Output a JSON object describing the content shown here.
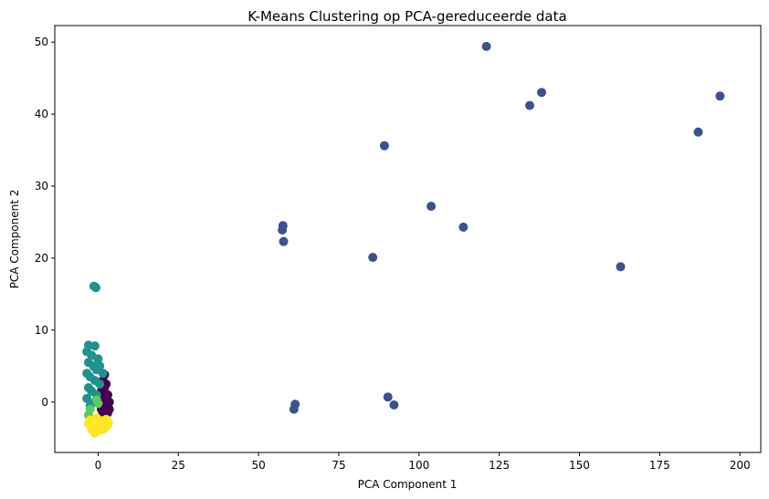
{
  "chart_data": {
    "type": "scatter",
    "title": "K-Means Clustering op PCA-gereduceerde data",
    "xlabel": "PCA Component 1",
    "ylabel": "PCA Component 2",
    "xlim": [
      -13.5,
      206.5
    ],
    "ylim": [
      -7,
      52.3
    ],
    "xticks": [
      0,
      25,
      50,
      75,
      100,
      125,
      150,
      175,
      200
    ],
    "yticks": [
      0,
      10,
      20,
      30,
      40,
      50
    ],
    "grid": false,
    "legend": "none",
    "series": [
      {
        "color": "#440154",
        "points": [
          [
            1.5,
            -1.5
          ],
          [
            2.0,
            0.5
          ],
          [
            2.5,
            -0.5
          ],
          [
            3.0,
            1.0
          ],
          [
            2.0,
            2.0
          ],
          [
            1.0,
            -1.0
          ],
          [
            3.5,
            -1.0
          ],
          [
            2.5,
            2.5
          ],
          [
            1.5,
            3.0
          ],
          [
            3.0,
            -1.5
          ],
          [
            2.0,
            3.8
          ],
          [
            1.0,
            1.5
          ],
          [
            3.5,
            0.0
          ]
        ]
      },
      {
        "color": "#3b528b",
        "points": [
          [
            121,
            49.4
          ],
          [
            134.5,
            41.2
          ],
          [
            138.2,
            43
          ],
          [
            193.8,
            42.5
          ],
          [
            187,
            37.5
          ],
          [
            89.2,
            35.6
          ],
          [
            103.8,
            27.2
          ],
          [
            113.8,
            24.3
          ],
          [
            57.6,
            24.5
          ],
          [
            57.4,
            23.9
          ],
          [
            57.8,
            22.3
          ],
          [
            85.6,
            20.1
          ],
          [
            162.8,
            18.8
          ],
          [
            90.3,
            0.7
          ],
          [
            92.2,
            -0.4
          ],
          [
            61.4,
            -0.3
          ],
          [
            61.0,
            -1.0
          ]
        ]
      },
      {
        "color": "#21918c",
        "points": [
          [
            -1.3,
            16.1
          ],
          [
            -0.7,
            15.9
          ],
          [
            -3.0,
            7.9
          ],
          [
            -1.0,
            7.8
          ],
          [
            -3.5,
            7.0
          ],
          [
            -2.0,
            6.5
          ],
          [
            0.0,
            6.0
          ],
          [
            -3.0,
            5.5
          ],
          [
            -1.5,
            5.0
          ],
          [
            -0.5,
            4.5
          ],
          [
            -3.5,
            4.0
          ],
          [
            -2.5,
            3.5
          ],
          [
            -1.0,
            3.0
          ],
          [
            0.5,
            2.5
          ],
          [
            -3.0,
            2.0
          ],
          [
            -2.0,
            1.5
          ],
          [
            -0.5,
            1.0
          ],
          [
            1.5,
            4.0
          ],
          [
            0.5,
            5.0
          ],
          [
            -3.5,
            0.5
          ],
          [
            -2.5,
            -0.5
          ],
          [
            -1.0,
            0.0
          ]
        ]
      },
      {
        "color": "#5ec962",
        "points": [
          [
            -0.5,
            0.3
          ],
          [
            -3.0,
            -1.8
          ],
          [
            -2.5,
            -1.0
          ],
          [
            0.0,
            -0.2
          ]
        ]
      },
      {
        "color": "#fde725",
        "points": [
          [
            -3.0,
            -3.0
          ],
          [
            -1.5,
            -3.5
          ],
          [
            0.0,
            -4.0
          ],
          [
            1.5,
            -3.8
          ],
          [
            3.0,
            -3.2
          ],
          [
            -2.5,
            -2.5
          ],
          [
            -0.5,
            -2.2
          ],
          [
            1.0,
            -2.6
          ],
          [
            2.5,
            -2.4
          ],
          [
            -1.0,
            -4.3
          ],
          [
            0.5,
            -3.0
          ],
          [
            2.0,
            -3.6
          ],
          [
            -2.0,
            -3.8
          ],
          [
            3.2,
            -2.8
          ]
        ]
      }
    ]
  }
}
